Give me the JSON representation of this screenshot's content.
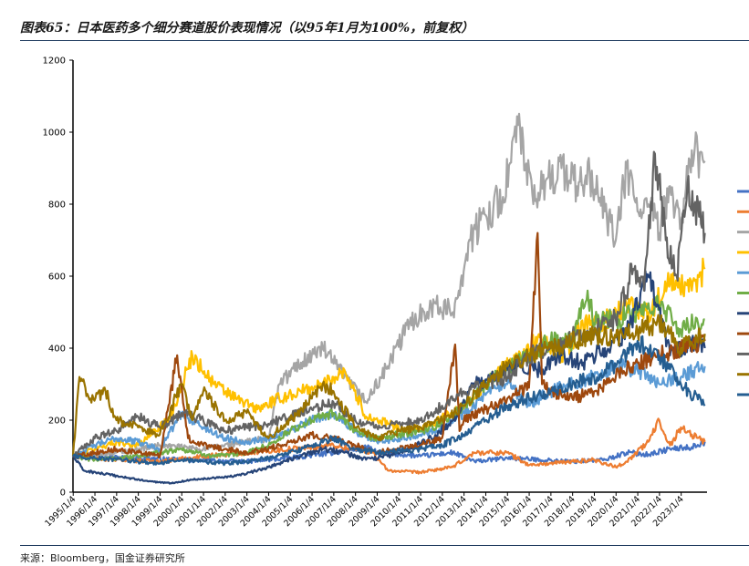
{
  "header": {
    "title": "图表65：日本医药多个细分赛道股价表现情况（以95年1月为100%，前复权）"
  },
  "footer": {
    "source": "来源：Bloomberg，国金证券研究所"
  },
  "chart_data": {
    "type": "line",
    "title": "图表65：日本医药多个细分赛道股价表现情况（以95年1月为100%，前复权）",
    "xlabel": "",
    "ylabel": "",
    "ylim": [
      0,
      1200
    ],
    "yticks": [
      0,
      200,
      400,
      600,
      800,
      1000,
      1200
    ],
    "xlim": [
      1995.0,
      2024.2
    ],
    "xticks": [
      "1995/1/4",
      "1996/1/4",
      "1997/1/4",
      "1998/1/4",
      "1999/1/4",
      "2000/1/4",
      "2001/1/4",
      "2002/1/4",
      "2003/1/4",
      "2004/1/4",
      "2005/1/4",
      "2006/1/4",
      "2007/1/4",
      "2008/1/4",
      "2009/1/4",
      "2010/1/4",
      "2011/1/4",
      "2012/1/4",
      "2013/1/4",
      "2014/1/4",
      "2015/1/4",
      "2016/1/4",
      "2017/1/4",
      "2018/1/4",
      "2019/1/4",
      "2020/1/4",
      "2021/1/4",
      "2022/1/4",
      "2023/1/4"
    ],
    "grid": false,
    "legend": "right",
    "series": [
      {
        "color": "#4472c4",
        "x": [
          1995.0,
          1998,
          2000,
          2003,
          2005,
          2007,
          2008.5,
          2009,
          2011,
          2012.5,
          2013.5,
          2015,
          2016.5,
          2018,
          2019.5,
          2020.5,
          2021.5,
          2022.5,
          2023.5,
          2024.1
        ],
        "values": [
          100,
          95,
          90,
          85,
          95,
          110,
          125,
          110,
          100,
          110,
          85,
          95,
          90,
          85,
          90,
          110,
          105,
          120,
          125,
          140
        ]
      },
      {
        "color": "#ed7d31",
        "x": [
          1995.0,
          1997,
          1999,
          2001,
          2003,
          2005,
          2007,
          2008.8,
          2009.5,
          2011,
          2012.5,
          2013.5,
          2015,
          2016,
          2017,
          2019,
          2020,
          2020.5,
          2021.5,
          2022,
          2022.5,
          2023,
          2023.5,
          2024.1
        ],
        "values": [
          100,
          90,
          85,
          100,
          110,
          120,
          130,
          110,
          60,
          55,
          70,
          110,
          110,
          75,
          80,
          90,
          70,
          85,
          140,
          200,
          130,
          180,
          160,
          140
        ]
      },
      {
        "color": "#a5a5a5",
        "x": [
          1995.0,
          1997,
          1999,
          2001,
          2003,
          2004,
          2004.5,
          2005.5,
          2006.5,
          2007.5,
          2008.5,
          2009.5,
          2010.5,
          2011.5,
          2012.5,
          2013.3,
          2014,
          2014.8,
          2015.5,
          2016.2,
          2016.8,
          2017.5,
          2018.2,
          2018.8,
          2019.5,
          2020,
          2020.5,
          2021,
          2021.5,
          2022,
          2022.5,
          2023,
          2023.5,
          2024.1
        ],
        "values": [
          100,
          110,
          130,
          120,
          140,
          150,
          300,
          360,
          400,
          320,
          250,
          350,
          470,
          520,
          500,
          700,
          770,
          820,
          1020,
          800,
          870,
          900,
          850,
          880,
          780,
          700,
          900,
          780,
          800,
          720,
          850,
          750,
          950,
          920
        ]
      },
      {
        "color": "#ffc000",
        "x": [
          1995.0,
          1996,
          1997,
          1998,
          1999.5,
          2000.5,
          2001.5,
          2002.5,
          2003.5,
          2004.5,
          2005.5,
          2006.5,
          2007.5,
          2008.5,
          2009.5,
          2010.5,
          2011.5,
          2012.5,
          2013.5,
          2014.5,
          2015.5,
          2016.5,
          2017.5,
          2018.5,
          2019.5,
          2020.5,
          2021.5,
          2022.5,
          2023.5,
          2024.1
        ],
        "values": [
          100,
          120,
          140,
          130,
          210,
          380,
          300,
          260,
          230,
          260,
          280,
          300,
          340,
          210,
          190,
          170,
          190,
          220,
          260,
          330,
          370,
          430,
          380,
          460,
          480,
          520,
          500,
          580,
          560,
          620
        ]
      },
      {
        "color": "#5b9bd5",
        "x": [
          1995.0,
          1996,
          1997,
          1998,
          1999,
          2000,
          2001,
          2002,
          2003,
          2004,
          2005,
          2006,
          2007,
          2008,
          2009,
          2010,
          2011,
          2012,
          2013,
          2014,
          2015,
          2016,
          2017,
          2018,
          2019,
          2020,
          2021,
          2022,
          2023,
          2024.1
        ],
        "values": [
          100,
          130,
          150,
          140,
          120,
          220,
          180,
          150,
          140,
          150,
          170,
          200,
          220,
          170,
          140,
          150,
          160,
          180,
          220,
          270,
          300,
          240,
          280,
          300,
          320,
          350,
          340,
          300,
          320,
          350
        ]
      },
      {
        "color": "#70ad47",
        "x": [
          1995.0,
          1996,
          1997,
          1998,
          1999,
          2000,
          2001,
          2002,
          2003,
          2004,
          2005,
          2006,
          2007,
          2008,
          2009,
          2010,
          2011,
          2012,
          2013,
          2014,
          2015,
          2016,
          2017,
          2018,
          2018.7,
          2019,
          2020,
          2021,
          2022,
          2023,
          2024.1
        ],
        "values": [
          100,
          90,
          95,
          100,
          110,
          120,
          105,
          100,
          110,
          130,
          170,
          200,
          220,
          170,
          150,
          160,
          170,
          190,
          240,
          300,
          340,
          380,
          420,
          420,
          560,
          470,
          480,
          500,
          520,
          450,
          480
        ]
      },
      {
        "color": "#264478",
        "x": [
          1995.0,
          1995.5,
          1996.5,
          1997.5,
          1998.5,
          1999.5,
          2000.5,
          2001.5,
          2002.5,
          2003.5,
          2004.5,
          2005.5,
          2006.5,
          2007.5,
          2008.5,
          2009.5,
          2010.5,
          2011.5,
          2012.5,
          2013.5,
          2014.5,
          2015.5,
          2016.5,
          2017.5,
          2018.5,
          2019.5,
          2020.5,
          2021.5,
          2022.5,
          2023.5,
          2024.1
        ],
        "values": [
          100,
          60,
          50,
          40,
          30,
          25,
          35,
          40,
          45,
          60,
          80,
          100,
          120,
          110,
          90,
          100,
          120,
          150,
          200,
          300,
          320,
          350,
          340,
          380,
          360,
          400,
          440,
          600,
          380,
          420,
          400
        ]
      },
      {
        "color": "#9e480e",
        "x": [
          1995.0,
          1996,
          1997,
          1998,
          1999,
          1999.8,
          2000.3,
          2001,
          2002,
          2003,
          2004,
          2005,
          2006,
          2007,
          2008,
          2009,
          2010,
          2011,
          2012,
          2012.6,
          2012.8,
          2013,
          2014,
          2015,
          2016,
          2016.4,
          2016.6,
          2017,
          2018,
          2019,
          2020,
          2021,
          2022,
          2023,
          2024.1
        ],
        "values": [
          100,
          110,
          120,
          110,
          100,
          380,
          150,
          130,
          120,
          110,
          120,
          140,
          160,
          150,
          130,
          110,
          120,
          130,
          150,
          410,
          170,
          200,
          230,
          260,
          290,
          720,
          300,
          280,
          260,
          280,
          320,
          360,
          380,
          400,
          420
        ]
      },
      {
        "color": "#636363",
        "x": [
          1995.0,
          1996,
          1997,
          1998,
          1999,
          2000,
          2001,
          2002,
          2003,
          2004,
          2005,
          2006,
          2007,
          2008,
          2009,
          2010,
          2011,
          2012,
          2013,
          2014,
          2015,
          2016,
          2017,
          2018,
          2019,
          2020,
          2020.8,
          2021.3,
          2021.8,
          2022.3,
          2022.8,
          2023.3,
          2024.1
        ],
        "values": [
          100,
          150,
          170,
          210,
          180,
          220,
          200,
          170,
          180,
          190,
          210,
          230,
          250,
          200,
          180,
          190,
          200,
          240,
          280,
          300,
          320,
          380,
          400,
          430,
          450,
          480,
          620,
          560,
          940,
          700,
          600,
          860,
          720
        ]
      },
      {
        "color": "#997300",
        "x": [
          1995.0,
          1995.3,
          1995.8,
          1996.5,
          1997,
          1998,
          1999,
          2000,
          2000.5,
          2001,
          2002,
          2003,
          2004,
          2005,
          2006,
          2006.5,
          2007,
          2008,
          2009,
          2010,
          2011,
          2012,
          2013,
          2014,
          2015,
          2016,
          2017,
          2018,
          2019,
          2020,
          2021,
          2022,
          2023,
          2024.1
        ],
        "values": [
          100,
          320,
          260,
          280,
          200,
          180,
          160,
          300,
          200,
          280,
          200,
          220,
          150,
          200,
          260,
          300,
          280,
          180,
          150,
          170,
          180,
          200,
          240,
          300,
          350,
          380,
          400,
          420,
          440,
          430,
          450,
          470,
          400,
          440
        ]
      },
      {
        "color": "#255e91",
        "x": [
          1995.0,
          1996,
          1997,
          1998,
          1999,
          2000,
          2001,
          2002,
          2003,
          2004,
          2005,
          2006,
          2007,
          2008,
          2009,
          2010,
          2011,
          2012,
          2013,
          2014,
          2015,
          2016,
          2017,
          2018,
          2019,
          2020,
          2021,
          2022,
          2023,
          2024.1
        ],
        "values": [
          100,
          95,
          90,
          85,
          80,
          90,
          85,
          80,
          85,
          95,
          110,
          130,
          150,
          120,
          110,
          115,
          120,
          130,
          160,
          200,
          240,
          260,
          280,
          300,
          320,
          350,
          420,
          380,
          300,
          240
        ]
      }
    ]
  }
}
